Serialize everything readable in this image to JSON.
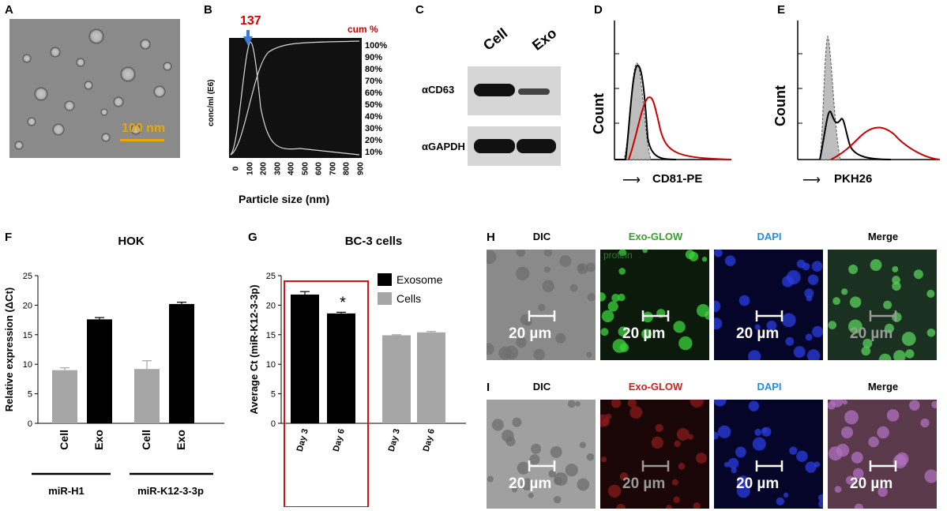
{
  "panels": {
    "A": {
      "label": "A",
      "scale": "100 nm"
    },
    "B": {
      "label": "B",
      "peak": "137",
      "cum": "cum %",
      "ylabel": "conc/ml (E6)",
      "xlabel": "Particle size (nm)",
      "xticks": [
        "0",
        "100",
        "200",
        "300",
        "400",
        "500",
        "600",
        "700",
        "800",
        "900"
      ],
      "pticks": [
        "100%",
        "90%",
        "80%",
        "70%",
        "60%",
        "50%",
        "40%",
        "30%",
        "20%",
        "10%"
      ]
    },
    "C": {
      "label": "C",
      "col1": "Cell",
      "col2": "Exo",
      "row1": "αCD63",
      "row2": "αGAPDH"
    },
    "D": {
      "label": "D",
      "ylabel": "Count",
      "xlabel": "CD81-PE"
    },
    "E": {
      "label": "E",
      "ylabel": "Count",
      "xlabel": "PKH26"
    },
    "F": {
      "label": "F",
      "group1": "miR-H1",
      "group2": "miR-K12-3-3p"
    },
    "G": {
      "label": "G",
      "star": "*"
    },
    "H": {
      "label": "H",
      "heads": [
        "DIC",
        "Exo-GLOW",
        "DAPI",
        "Merge"
      ],
      "sub": "protein",
      "scale": "20 µm"
    },
    "I": {
      "label": "I",
      "heads": [
        "DIC",
        "Exo-GLOW",
        "DAPI",
        "Merge"
      ],
      "scale": "20 µm"
    }
  },
  "chart_data": [
    {
      "type": "bar",
      "title": "HOK",
      "ylabel": "Relative expression (ΔCt)",
      "ylim": [
        0,
        25
      ],
      "yticks": [
        "0",
        "5",
        "10",
        "15",
        "20",
        "25"
      ],
      "categories": [
        "Cell",
        "Exo",
        "Cell",
        "Exo"
      ],
      "values": [
        9.0,
        17.6,
        9.2,
        20.2
      ],
      "errors": [
        0.4,
        0.3,
        1.4,
        0.3
      ],
      "colors": [
        "#a6a6a6",
        "#000000",
        "#a6a6a6",
        "#000000"
      ]
    },
    {
      "type": "bar",
      "title": "BC-3 cells",
      "ylabel": "Average Ct (miR-K12-3-3p)",
      "ylim": [
        0,
        25
      ],
      "yticks": [
        "0",
        "5",
        "10",
        "15",
        "20",
        "25"
      ],
      "categories": [
        "Day 3",
        "Day 6",
        "Day 3",
        "Day 6"
      ],
      "values": [
        21.8,
        18.6,
        14.9,
        15.4
      ],
      "errors": [
        0.5,
        0.2,
        0.1,
        0.15
      ],
      "colors": [
        "#000000",
        "#000000",
        "#a6a6a6",
        "#a6a6a6"
      ],
      "legend": [
        {
          "name": "Exosome",
          "color": "#000000"
        },
        {
          "name": "Cells",
          "color": "#a6a6a6"
        }
      ]
    }
  ]
}
